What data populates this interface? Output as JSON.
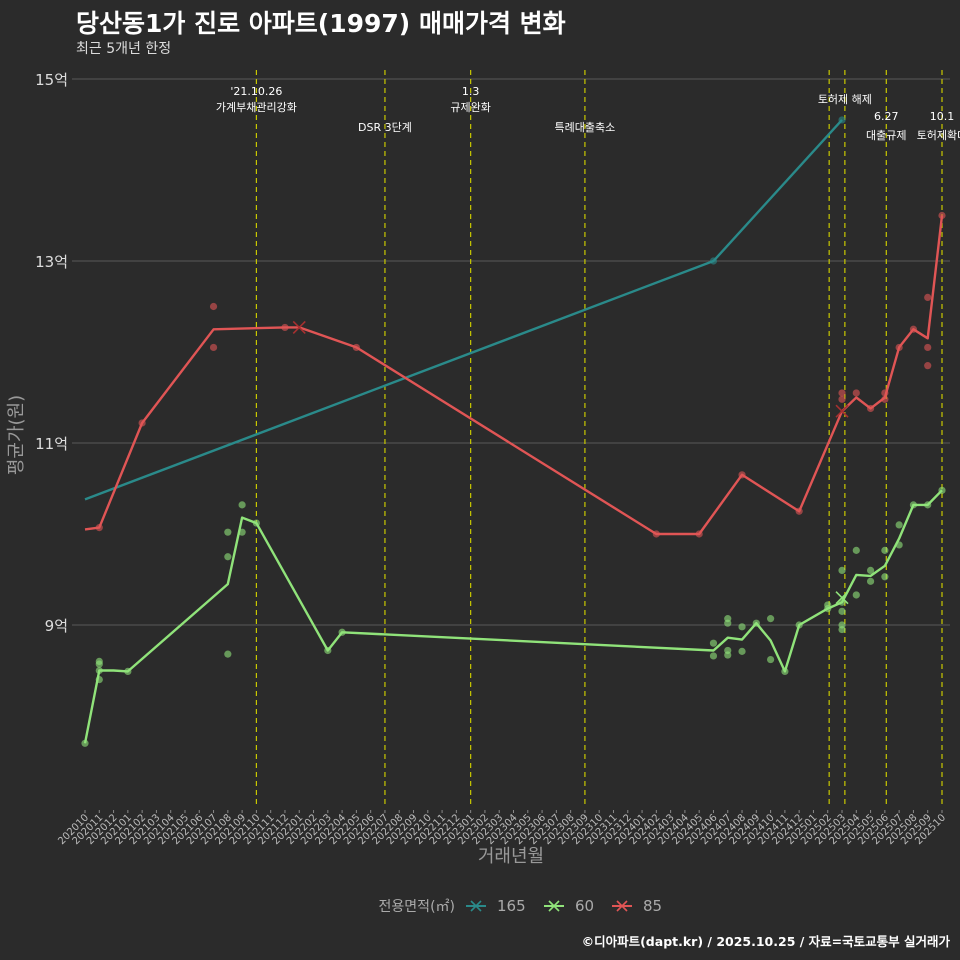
{
  "title": "당산동1가 진로 아파트(1997) 매매가격 변화",
  "subtitle": "최근 5개년 한정",
  "credit": "©디아파트(dapt.kr) / 2025.10.25 / 자료=국토교통부 실거래가",
  "colors": {
    "background": "#2b2b2b",
    "grid": "#5a5a5a",
    "vline": "#c8c800",
    "s165": "#2a8a8a",
    "s60": "#90e37a",
    "s85": "#e05555"
  },
  "chart_data": {
    "type": "line",
    "xlabel": "거래년월",
    "ylabel": "평균가(원)",
    "ylim": [
      7.2,
      15.2
    ],
    "yticks": [
      {
        "v": 9,
        "label": "9억"
      },
      {
        "v": 11,
        "label": "11억"
      },
      {
        "v": 13,
        "label": "13억"
      },
      {
        "v": 15,
        "label": "15억"
      }
    ],
    "categories": [
      "202010",
      "202011",
      "202012",
      "202101",
      "202102",
      "202103",
      "202104",
      "202105",
      "202106",
      "202107",
      "202108",
      "202109",
      "202110",
      "202111",
      "202112",
      "202201",
      "202202",
      "202203",
      "202204",
      "202205",
      "202206",
      "202207",
      "202208",
      "202209",
      "202210",
      "202211",
      "202212",
      "202301",
      "202302",
      "202303",
      "202304",
      "202305",
      "202306",
      "202307",
      "202308",
      "202309",
      "202310",
      "202311",
      "202312",
      "202401",
      "202402",
      "202403",
      "202404",
      "202405",
      "202406",
      "202407",
      "202408",
      "202409",
      "202410",
      "202411",
      "202412",
      "202501",
      "202502",
      "202503",
      "202504",
      "202505",
      "202506",
      "202507",
      "202508",
      "202509",
      "202510"
    ],
    "legend_title": "전용면적(㎡)",
    "legend_position": "bottom",
    "events": [
      {
        "x": 12,
        "label1": "'21.10.26",
        "label2": "가계부채관리강화"
      },
      {
        "x": 21,
        "label1": "",
        "label2": "DSR 3단계"
      },
      {
        "x": 27,
        "label1": "1.3",
        "label2": "규제완화"
      },
      {
        "x": 35,
        "label1": "",
        "label2": "특례대출축소"
      },
      {
        "x": 52.1,
        "label1": "",
        "label2": ""
      },
      {
        "x": 53.2,
        "label1": "",
        "label2": "토허제 해제"
      },
      {
        "x": 56.1,
        "label1": "6.27",
        "label2": "대출규제"
      },
      {
        "x": 60,
        "label1": "10.1",
        "label2": "토허제확대"
      }
    ],
    "series": [
      {
        "name": "165",
        "color": "#2a8a8a",
        "line": [
          [
            0,
            10.38
          ],
          [
            44,
            13.0
          ],
          [
            53.0,
            14.55
          ]
        ],
        "points": [
          [
            44,
            13.0
          ],
          [
            53.0,
            14.55
          ]
        ],
        "markers": []
      },
      {
        "name": "60",
        "color": "#90e37a",
        "line": [
          [
            0,
            7.7
          ],
          [
            1,
            8.5
          ],
          [
            2,
            8.5
          ],
          [
            3,
            8.49
          ],
          [
            10,
            9.45
          ],
          [
            11,
            10.18
          ],
          [
            12,
            10.12
          ],
          [
            17,
            8.72
          ],
          [
            18,
            8.92
          ],
          [
            44,
            8.72
          ],
          [
            45,
            8.86
          ],
          [
            46,
            8.84
          ],
          [
            47,
            9.02
          ],
          [
            48,
            8.83
          ],
          [
            49,
            8.49
          ],
          [
            50,
            9.0
          ],
          [
            52,
            9.18
          ],
          [
            53,
            9.25
          ],
          [
            54,
            9.55
          ],
          [
            55,
            9.54
          ],
          [
            56,
            9.65
          ],
          [
            57,
            9.95
          ],
          [
            58,
            10.32
          ],
          [
            59,
            10.32
          ],
          [
            60,
            10.48
          ]
        ],
        "points": [
          [
            0,
            7.7
          ],
          [
            1,
            8.4
          ],
          [
            1,
            8.5
          ],
          [
            1,
            8.57
          ],
          [
            1,
            8.6
          ],
          [
            3,
            8.49
          ],
          [
            10,
            8.68
          ],
          [
            10,
            9.75
          ],
          [
            10,
            10.02
          ],
          [
            11,
            10.02
          ],
          [
            11,
            10.32
          ],
          [
            12,
            10.12
          ],
          [
            17,
            8.72
          ],
          [
            18,
            8.92
          ],
          [
            44,
            8.8
          ],
          [
            44,
            8.66
          ],
          [
            45,
            8.67
          ],
          [
            45,
            8.72
          ],
          [
            45,
            9.02
          ],
          [
            45,
            9.07
          ],
          [
            46,
            8.98
          ],
          [
            46,
            8.71
          ],
          [
            47,
            9.02
          ],
          [
            48,
            9.07
          ],
          [
            48,
            8.62
          ],
          [
            49,
            8.49
          ],
          [
            50,
            9.0
          ],
          [
            52,
            9.18
          ],
          [
            52,
            9.22
          ],
          [
            53,
            8.95
          ],
          [
            53,
            9.0
          ],
          [
            53,
            9.15
          ],
          [
            53,
            9.25
          ],
          [
            53,
            9.6
          ],
          [
            54,
            9.33
          ],
          [
            54,
            9.82
          ],
          [
            55,
            9.48
          ],
          [
            55,
            9.6
          ],
          [
            56,
            9.53
          ],
          [
            56,
            9.82
          ],
          [
            57,
            9.88
          ],
          [
            57,
            10.1
          ],
          [
            58,
            10.32
          ],
          [
            59,
            10.32
          ],
          [
            60,
            10.48
          ]
        ],
        "markers": [
          [
            53.0,
            9.3
          ]
        ]
      },
      {
        "name": "85",
        "color": "#e05555",
        "line": [
          [
            0,
            10.05
          ],
          [
            1,
            10.07
          ],
          [
            4,
            11.22
          ],
          [
            9,
            12.25
          ],
          [
            14,
            12.27
          ],
          [
            15,
            12.27
          ],
          [
            19,
            12.05
          ],
          [
            40,
            10.0
          ],
          [
            43,
            10.0
          ],
          [
            46,
            10.65
          ],
          [
            50,
            10.25
          ],
          [
            53,
            11.35
          ],
          [
            54,
            11.5
          ],
          [
            55,
            11.38
          ],
          [
            56,
            11.5
          ],
          [
            57,
            12.05
          ],
          [
            58,
            12.25
          ],
          [
            59,
            12.15
          ],
          [
            60,
            13.5
          ]
        ],
        "points": [
          [
            1,
            10.07
          ],
          [
            4,
            11.22
          ],
          [
            9,
            12.5
          ],
          [
            9,
            12.05
          ],
          [
            14,
            12.27
          ],
          [
            19,
            12.05
          ],
          [
            40,
            10.0
          ],
          [
            43,
            10.0
          ],
          [
            46,
            10.65
          ],
          [
            50,
            10.25
          ],
          [
            53,
            11.48
          ],
          [
            53,
            11.55
          ],
          [
            54,
            11.55
          ],
          [
            55,
            11.38
          ],
          [
            56,
            11.48
          ],
          [
            56,
            11.55
          ],
          [
            57,
            12.05
          ],
          [
            58,
            12.25
          ],
          [
            59,
            12.6
          ],
          [
            59,
            12.05
          ],
          [
            59,
            11.85
          ],
          [
            60,
            13.5
          ]
        ],
        "markers": [
          [
            15.0,
            12.27
          ],
          [
            53.0,
            11.35
          ]
        ]
      }
    ]
  }
}
